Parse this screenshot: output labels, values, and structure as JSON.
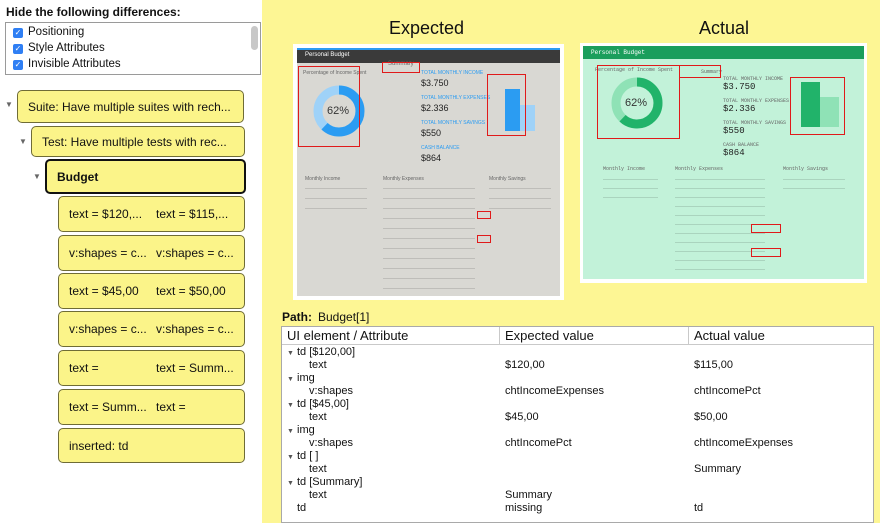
{
  "hide_panel": {
    "title": "Hide the following differences:",
    "options": [
      {
        "label": "Positioning",
        "checked": true
      },
      {
        "label": "Style Attributes",
        "checked": true
      },
      {
        "label": "Invisible Attributes",
        "checked": true
      }
    ]
  },
  "tree": {
    "suite": "Suite: Have multiple suites with rech...",
    "test": "Test: Have multiple tests with rec...",
    "budget": "Budget",
    "diffs": [
      {
        "expected": "text = $120,...",
        "actual": "text = $115,..."
      },
      {
        "expected": "v:shapes = c...",
        "actual": "v:shapes = c..."
      },
      {
        "expected": "text = $45,00",
        "actual": "text = $50,00"
      },
      {
        "expected": "v:shapes = c...",
        "actual": "v:shapes = c..."
      },
      {
        "expected": "text =",
        "actual": "text = Summ..."
      },
      {
        "expected": "text = Summ...",
        "actual": "text ="
      },
      {
        "expected": "inserted: td",
        "actual": ""
      }
    ]
  },
  "compare": {
    "expected_header": "Expected",
    "actual_header": "Actual",
    "expected_shot": {
      "title": "Personal Budget",
      "chart_title": "Percentage of Income Spent",
      "pct": "62%",
      "summary_label": "Summary",
      "totals": [
        {
          "label": "TOTAL MONTHLY INCOME",
          "value": "$3.750"
        },
        {
          "label": "TOTAL MONTHLY EXPENSES",
          "value": "$2.336"
        },
        {
          "label": "TOTAL MONTHLY SAVINGS",
          "value": "$550"
        },
        {
          "label": "CASH BALANCE",
          "value": "$864"
        }
      ],
      "sections": [
        "Monthly Income",
        "Monthly Expenses",
        "Monthly Savings"
      ]
    },
    "actual_shot": {
      "title": "Personal Budget",
      "chart_title": "Percentage of Income Spent",
      "pct": "62%",
      "summary_label": "Summary",
      "totals": [
        {
          "label": "TOTAL MONTHLY INCOME",
          "value": "$3.750"
        },
        {
          "label": "TOTAL MONTHLY EXPENSES",
          "value": "$2.336"
        },
        {
          "label": "TOTAL MONTHLY SAVINGS",
          "value": "$550"
        },
        {
          "label": "CASH BALANCE",
          "value": "$864"
        }
      ],
      "sections": [
        "Monthly Income",
        "Monthly Expenses",
        "Monthly Savings"
      ]
    }
  },
  "path": {
    "label": "Path:",
    "value": "Budget[1]"
  },
  "table": {
    "headers": [
      "UI element / Attribute",
      "Expected value",
      "Actual value"
    ],
    "rows": [
      {
        "col1": "td [$120,00]",
        "expected": "",
        "actual": "",
        "expander": true
      },
      {
        "col1": "text",
        "expected": "$120,00",
        "actual": "$115,00",
        "expander": false
      },
      {
        "col1": "img",
        "expected": "",
        "actual": "",
        "expander": true
      },
      {
        "col1": "v:shapes",
        "expected": "chtIncomeExpenses",
        "actual": "chtIncomePct",
        "expander": false
      },
      {
        "col1": "td [$45,00]",
        "expected": "",
        "actual": "",
        "expander": true
      },
      {
        "col1": "text",
        "expected": "$45,00",
        "actual": "$50,00",
        "expander": false
      },
      {
        "col1": "img",
        "expected": "",
        "actual": "",
        "expander": true
      },
      {
        "col1": "v:shapes",
        "expected": "chtIncomePct",
        "actual": "chtIncomeExpenses",
        "expander": false
      },
      {
        "col1": "td [ ]",
        "expected": "",
        "actual": "",
        "expander": true
      },
      {
        "col1": "text",
        "expected": "",
        "actual": "Summary",
        "expander": false
      },
      {
        "col1": "td [Summary]",
        "expected": "",
        "actual": "",
        "expander": true
      },
      {
        "col1": "text",
        "expected": "Summary",
        "actual": "",
        "expander": false
      },
      {
        "col1": "td",
        "expected": "missing",
        "actual": "td",
        "expander": false
      }
    ]
  },
  "colors": {
    "node_fill": "#fbf489",
    "panel_bg": "#fdf694",
    "checkbox": "#2f7ff4",
    "diff_box": "#e01a1a",
    "expected_donut": "#2b9cf2",
    "actual_donut": "#21b36a"
  },
  "icons": [
    "checkbox-checked-icon",
    "disclosure-triangle-icon"
  ]
}
